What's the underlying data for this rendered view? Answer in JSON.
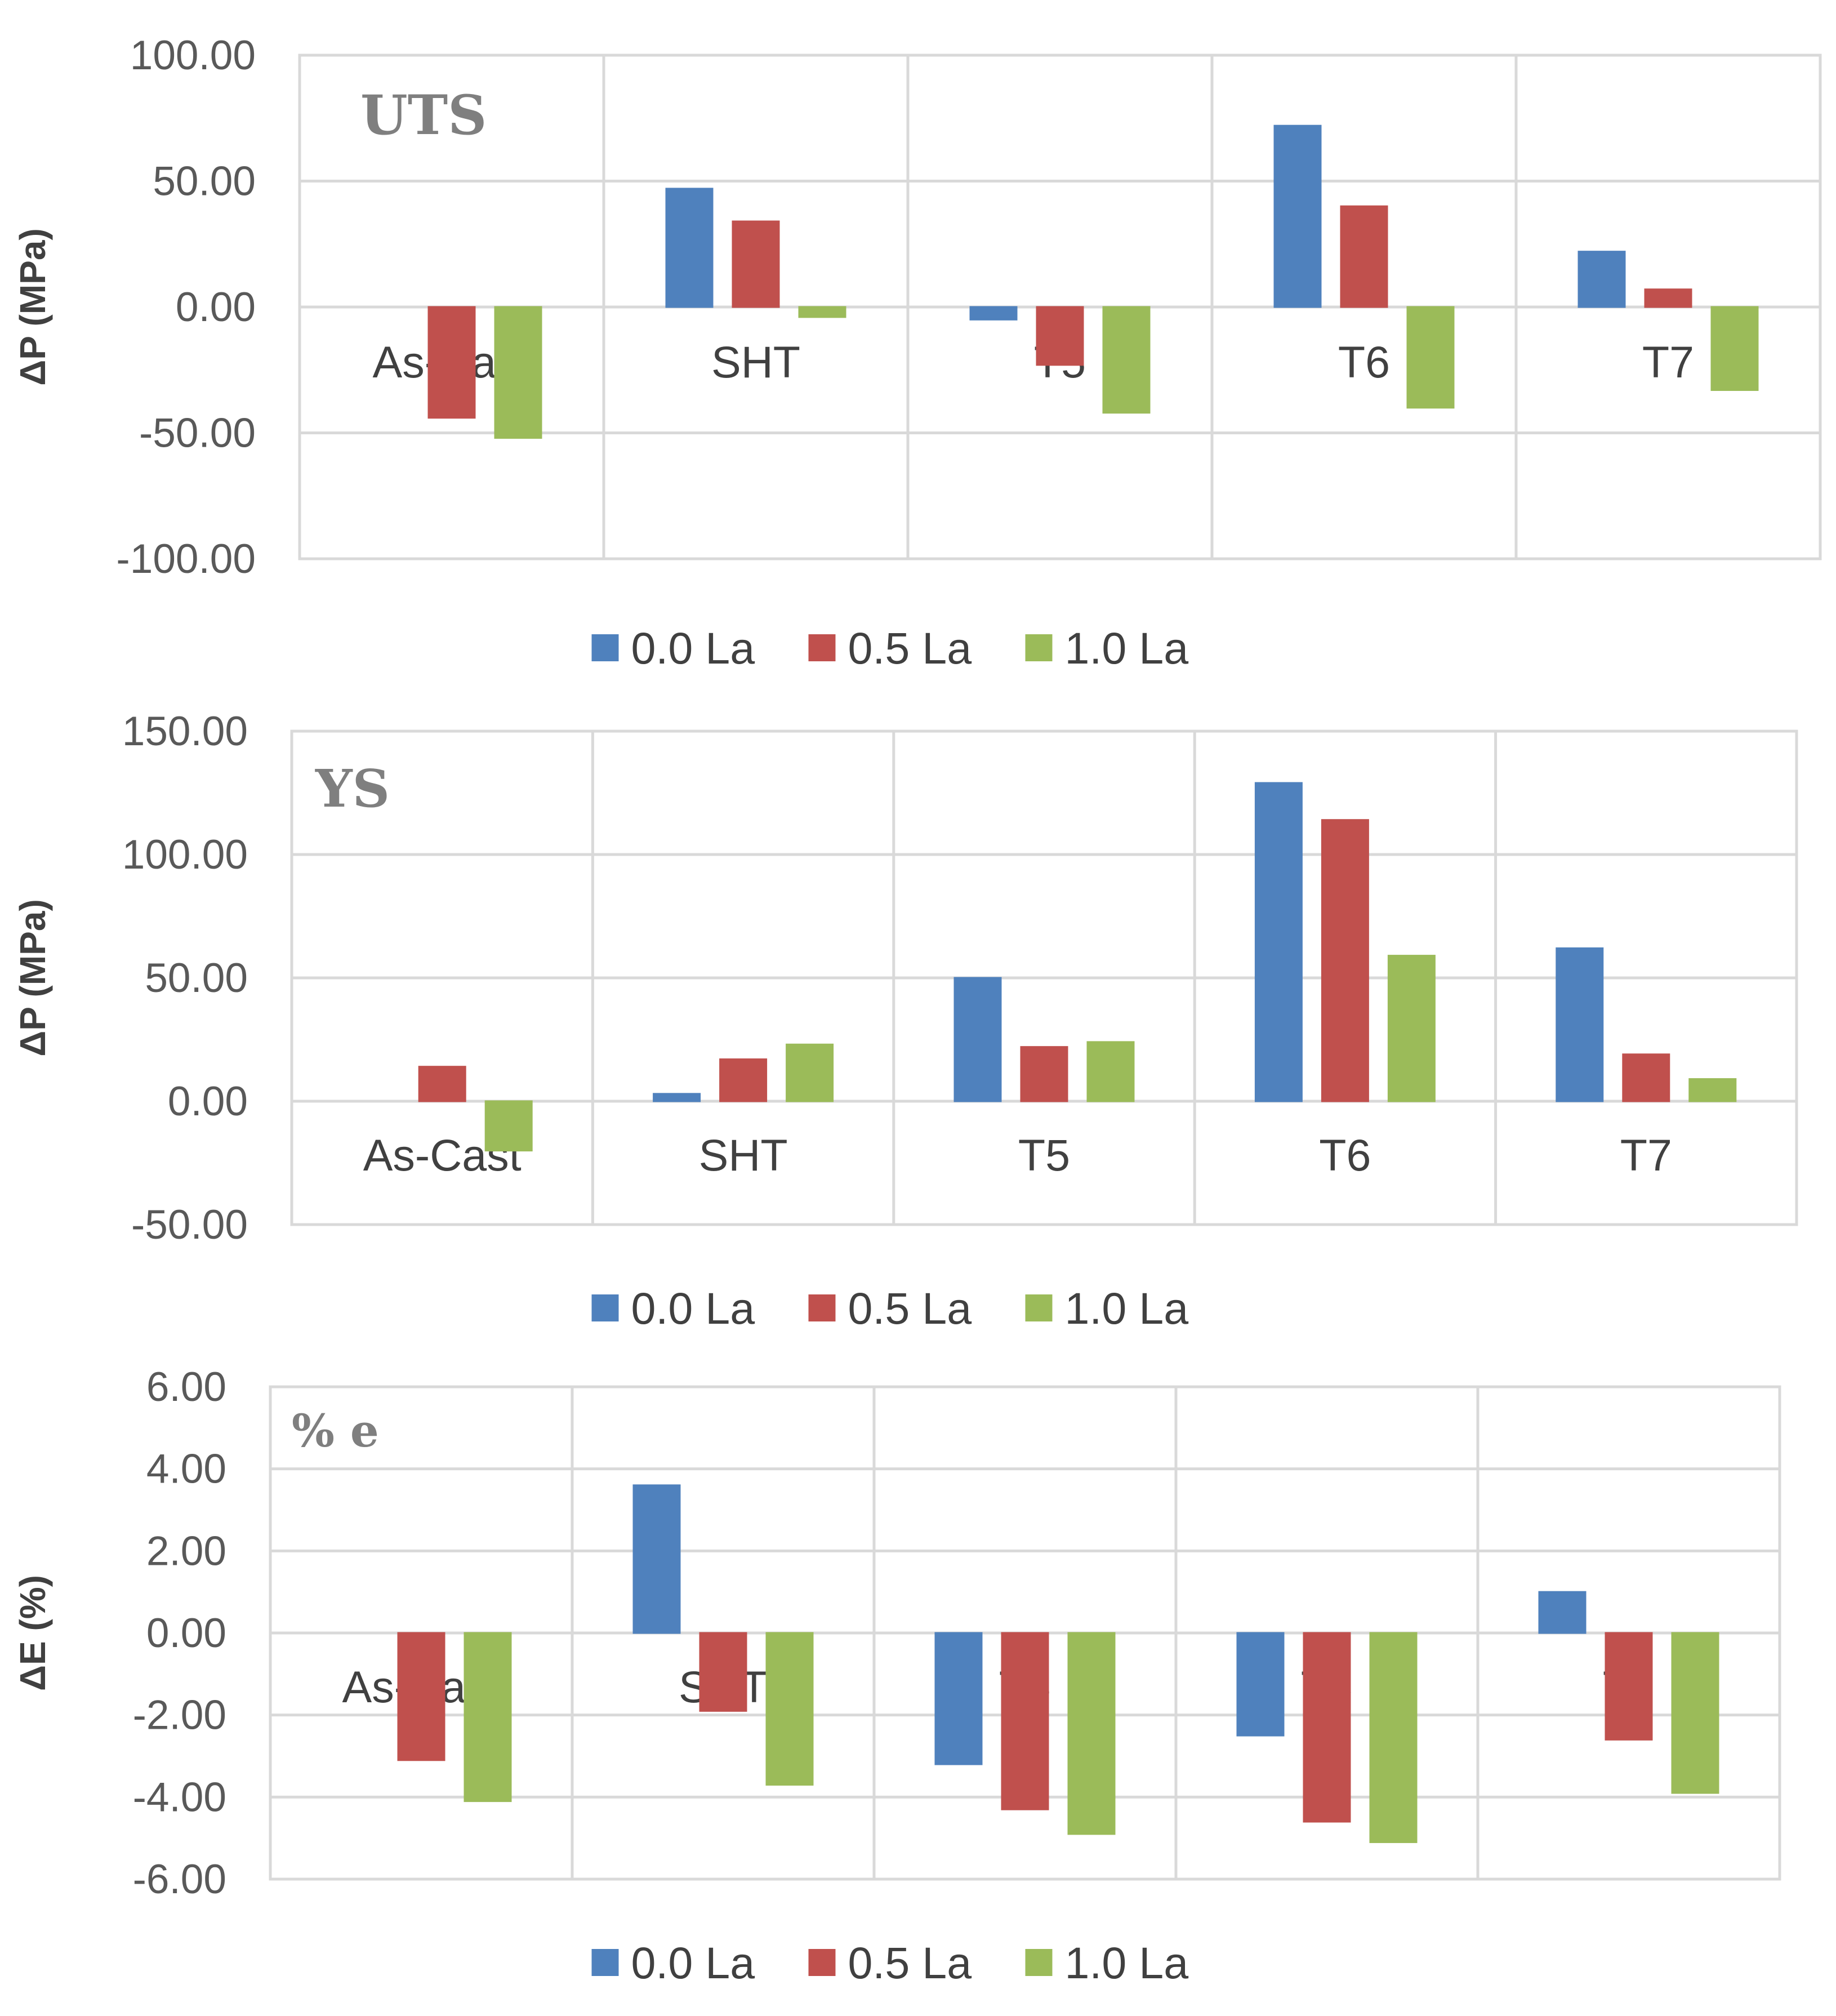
{
  "colors": {
    "s0": "#4f81bd",
    "s1": "#c0504d",
    "s2": "#9bbb59"
  },
  "chart_data": [
    {
      "type": "bar",
      "title": "UTS",
      "ylabel": "ΔP (MPa)",
      "xlabel": "",
      "categories": [
        "As-Cast",
        "SHT",
        "T5",
        "T6",
        "T7"
      ],
      "ylim": [
        -100,
        100
      ],
      "yticks": [
        "100.00",
        "50.00",
        "0.00",
        "-50.00",
        "-100.00"
      ],
      "series": [
        {
          "name": "0.0 La",
          "values": [
            0,
            47,
            -5,
            72,
            22
          ]
        },
        {
          "name": "0.5 La",
          "values": [
            -44,
            34,
            -23,
            40,
            7
          ]
        },
        {
          "name": "1.0 La",
          "values": [
            -52,
            -4,
            -42,
            -40,
            -33
          ]
        }
      ],
      "legend": "bottom-center",
      "grid": true
    },
    {
      "type": "bar",
      "title": "YS",
      "ylabel": "ΔP (MPa)",
      "xlabel": "",
      "categories": [
        "As-Cast",
        "SHT",
        "T5",
        "T6",
        "T7"
      ],
      "ylim": [
        -50,
        150
      ],
      "yticks": [
        "150.00",
        "100.00",
        "50.00",
        "0.00",
        "-50.00"
      ],
      "series": [
        {
          "name": "0.0 La",
          "values": [
            0,
            3,
            50,
            129,
            62
          ]
        },
        {
          "name": "0.5 La",
          "values": [
            14,
            17,
            22,
            114,
            19
          ]
        },
        {
          "name": "1.0 La",
          "values": [
            -20,
            23,
            24,
            59,
            9
          ]
        }
      ],
      "legend": "bottom-center",
      "grid": true
    },
    {
      "type": "bar",
      "title": "% e",
      "ylabel": "ΔE (%)",
      "xlabel": "",
      "categories": [
        "As-Cast",
        "SHT",
        "T5",
        "T6",
        "T7"
      ],
      "ylim": [
        -6,
        6
      ],
      "yticks": [
        "6.00",
        "4.00",
        "2.00",
        "0.00",
        "-2.00",
        "-4.00",
        "-6.00"
      ],
      "series": [
        {
          "name": "0.0 La",
          "values": [
            0,
            3.6,
            -3.2,
            -2.5,
            1.0
          ]
        },
        {
          "name": "0.5 La",
          "values": [
            -3.1,
            -1.9,
            -4.3,
            -4.6,
            -2.6
          ]
        },
        {
          "name": "1.0 La",
          "values": [
            -4.1,
            -3.7,
            -4.9,
            -5.1,
            -3.9
          ]
        }
      ],
      "legend": "bottom-center",
      "grid": true
    }
  ]
}
